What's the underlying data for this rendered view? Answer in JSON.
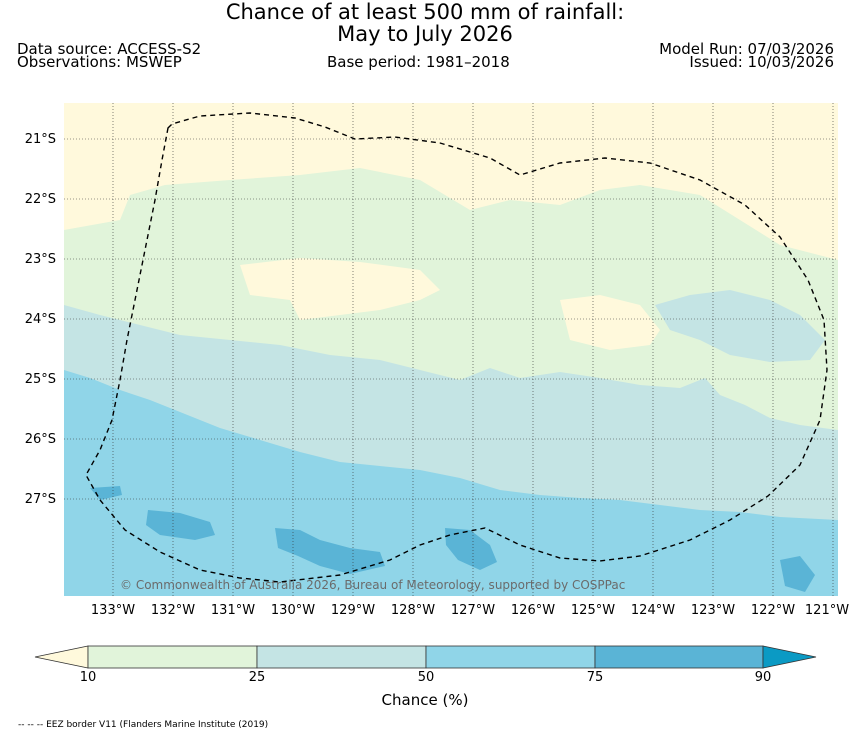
{
  "title_line1": "Chance of at least 500 mm of rainfall:",
  "title_line2": "May to July 2026",
  "data_source": "Data source: ACCESS-S2",
  "observations": "Observations: MSWEP",
  "base_period": "Base period: 1981–2018",
  "model_run": "Model Run: 07/03/2026",
  "issued": "Issued: 10/03/2026",
  "copyright": "© Commonwealth of Australia 2026, Bureau of Meteorology, supported by COSPPac",
  "lat_labels": [
    "21°S",
    "22°S",
    "23°S",
    "24°S",
    "25°S",
    "26°S",
    "27°S"
  ],
  "lon_labels": [
    "133°W",
    "132°W",
    "131°W",
    "130°W",
    "129°W",
    "128°W",
    "127°W",
    "126°W",
    "125°W",
    "124°W",
    "123°W",
    "122°W",
    "121°W"
  ],
  "colorbar": {
    "title": "Chance (%)",
    "ticks": [
      "10",
      "25",
      "50",
      "75",
      "90"
    ],
    "colors": [
      "#fff9dc",
      "#e1f4da",
      "#c4e4e4",
      "#90d5e8",
      "#5ab4d6",
      "#0b9ac4"
    ]
  },
  "footnote": "-- -- -- EEZ border V11 (Flanders Marine Institute (2019)"
}
